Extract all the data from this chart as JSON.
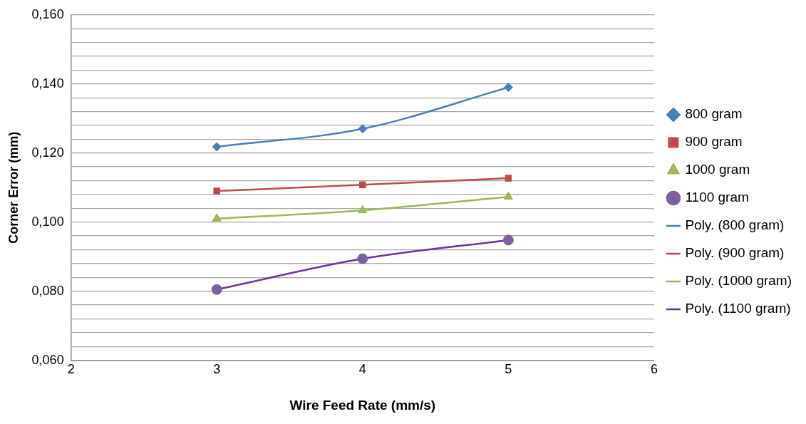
{
  "chart_data": {
    "type": "scatter",
    "xlabel": "Wire Feed Rate (mm/s)",
    "ylabel": "Corner Error (mm)",
    "xlim": [
      2,
      6
    ],
    "xticks": [
      2,
      3,
      4,
      5,
      6
    ],
    "ylim": [
      0.06,
      0.16
    ],
    "yticks": [
      {
        "value": 0.06,
        "label": "0,060"
      },
      {
        "value": 0.064,
        "label": null
      },
      {
        "value": 0.068,
        "label": null
      },
      {
        "value": 0.072,
        "label": null
      },
      {
        "value": 0.076,
        "label": null
      },
      {
        "value": 0.08,
        "label": "0,080"
      },
      {
        "value": 0.084,
        "label": null
      },
      {
        "value": 0.088,
        "label": null
      },
      {
        "value": 0.092,
        "label": null
      },
      {
        "value": 0.096,
        "label": null
      },
      {
        "value": 0.1,
        "label": "0,100"
      },
      {
        "value": 0.104,
        "label": null
      },
      {
        "value": 0.108,
        "label": null
      },
      {
        "value": 0.112,
        "label": null
      },
      {
        "value": 0.116,
        "label": null
      },
      {
        "value": 0.12,
        "label": "0,120"
      },
      {
        "value": 0.124,
        "label": null
      },
      {
        "value": 0.128,
        "label": null
      },
      {
        "value": 0.132,
        "label": null
      },
      {
        "value": 0.136,
        "label": null
      },
      {
        "value": 0.14,
        "label": "0,140"
      },
      {
        "value": 0.144,
        "label": null
      },
      {
        "value": 0.148,
        "label": null
      },
      {
        "value": 0.152,
        "label": null
      },
      {
        "value": 0.156,
        "label": null
      },
      {
        "value": 0.16,
        "label": "0,160"
      }
    ],
    "grid": "y",
    "legend": "right",
    "x": [
      3,
      4,
      5
    ],
    "series": [
      {
        "name": "800 gram",
        "marker": "diamond",
        "color": "#4a7ebb",
        "values": [
          0.1218,
          0.127,
          0.139
        ]
      },
      {
        "name": "900 gram",
        "marker": "square",
        "color": "#be4b48",
        "values": [
          0.109,
          0.1108,
          0.1127
        ]
      },
      {
        "name": "1000 gram",
        "marker": "triangle",
        "color": "#98b954",
        "values": [
          0.101,
          0.1034,
          0.1073
        ]
      },
      {
        "name": "1100 gram",
        "marker": "circle",
        "color": "#7d60a0",
        "values": [
          0.0805,
          0.0894,
          0.0948
        ]
      },
      {
        "name": "Poly. (800 gram)",
        "type": "line",
        "marker": "none",
        "color": "#4a7ebb",
        "x": [
          3,
          4,
          5
        ],
        "values": [
          0.1218,
          0.127,
          0.139
        ]
      },
      {
        "name": "Poly. (900 gram)",
        "type": "line",
        "marker": "none",
        "color": "#be4b48",
        "x": [
          3,
          4,
          5
        ],
        "values": [
          0.109,
          0.1108,
          0.1127
        ]
      },
      {
        "name": "Poly. (1000 gram)",
        "type": "line",
        "marker": "none",
        "color": "#98b954",
        "x": [
          3,
          4,
          5
        ],
        "values": [
          0.101,
          0.1034,
          0.1073
        ]
      },
      {
        "name": "Poly. (1100 gram)",
        "type": "line",
        "marker": "none",
        "color": "#7030a0",
        "x": [
          3,
          4,
          5
        ],
        "values": [
          0.0805,
          0.0894,
          0.0948
        ]
      }
    ]
  }
}
